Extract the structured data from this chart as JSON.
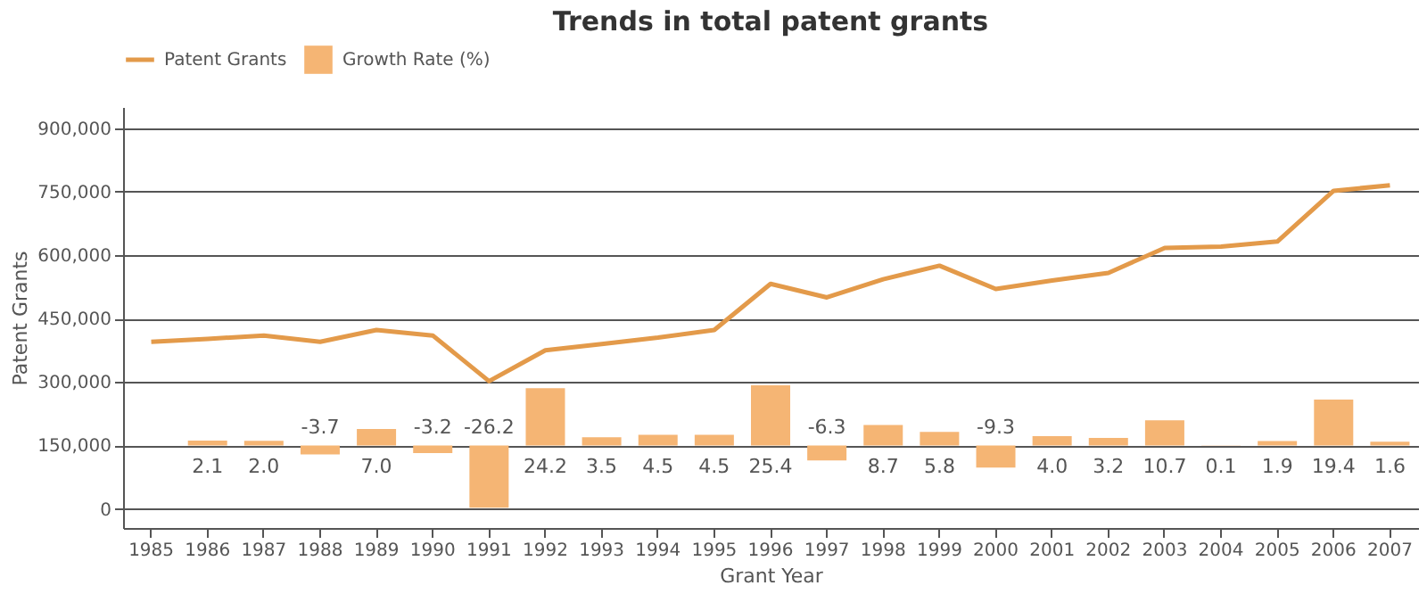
{
  "chart_data": {
    "type": "line",
    "title": "Trends in total patent grants",
    "xlabel": "Grant Year",
    "ylabel": "Patent Grants",
    "categories": [
      "1985",
      "1986",
      "1987",
      "1988",
      "1989",
      "1990",
      "1991",
      "1992",
      "1993",
      "1994",
      "1995",
      "1996",
      "1997",
      "1998",
      "1999",
      "2000",
      "2001",
      "2002",
      "2003",
      "2004",
      "2005",
      "2006",
      "2007"
    ],
    "series": [
      {
        "name": "Patent Grants",
        "color": "#e39a4a",
        "values": [
          395000,
          402000,
          410000,
          395000,
          423000,
          410000,
          302000,
          375000,
          390000,
          405000,
          423000,
          532000,
          500000,
          543000,
          575000,
          520000,
          540000,
          558000,
          617000,
          620000,
          632000,
          752000,
          765000
        ]
      },
      {
        "name": "Growth Rate (%)",
        "type": "bar",
        "axis": "y2",
        "color": "#f5b574",
        "values": [
          null,
          2.1,
          2.0,
          -3.7,
          7.0,
          -3.2,
          -26.2,
          24.2,
          3.5,
          4.5,
          4.5,
          25.4,
          -6.3,
          8.7,
          5.8,
          -9.3,
          4.0,
          3.2,
          10.7,
          0.1,
          1.9,
          19.4,
          1.6
        ],
        "value_labels": [
          null,
          "2.1",
          "2.0",
          "-3.7",
          "7.0",
          "-3.2",
          "-26.2",
          "24.2",
          "3.5",
          "4.5",
          "4.5",
          "25.4",
          "-6.3",
          "8.7",
          "5.8",
          "-9.3",
          "4.0",
          "3.2",
          "10.7",
          "0.1",
          "1.9",
          "19.4",
          "1.6"
        ]
      }
    ],
    "ylim": [
      -45000,
      950000
    ],
    "yticks": [
      0,
      {
        "value": 150000,
        "label": "150,000"
      },
      {
        "value": 300000,
        "label": "300,000"
      },
      {
        "value": 450000,
        "label": "450,000"
      },
      {
        "value": 600000,
        "label": "600,000"
      },
      {
        "value": 750000,
        "label": "750,000"
      },
      {
        "value": 900000,
        "label": "900,000"
      }
    ],
    "y2lim": [
      -34.8,
      142.9
    ],
    "grid": "y",
    "legend": "top",
    "tick_labels": "xy",
    "marker": "none"
  }
}
